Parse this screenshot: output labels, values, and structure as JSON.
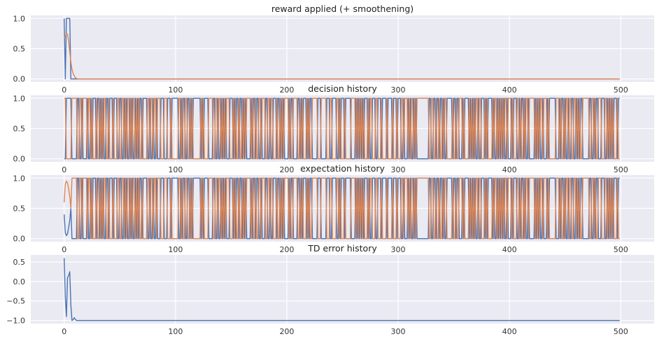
{
  "colors": {
    "background": "#ffffff",
    "axes_face": "#eaeaf2",
    "grid": "#ffffff",
    "series_blue": "#4c72b0",
    "series_orange": "#dd8452",
    "text": "#262626"
  },
  "chart_data": [
    {
      "type": "line",
      "title": "reward applied (+ smoothening)",
      "xlabel": "",
      "ylabel": "",
      "xlim": [
        -30,
        530
      ],
      "ylim": [
        -0.05,
        1.05
      ],
      "xticks": [
        0,
        100,
        200,
        300,
        400,
        500
      ],
      "yticks": [
        0.0,
        0.5,
        1.0
      ],
      "ytick_labels": [
        "0.0",
        "0.5",
        "1.0"
      ],
      "grid": true,
      "legend": "none",
      "series": [
        {
          "color": "#4c72b0",
          "pattern": "reward",
          "points": [
            [
              0,
              1.0
            ],
            [
              1,
              0.0
            ],
            [
              2,
              1.0
            ],
            [
              3,
              1.0
            ],
            [
              4,
              1.0
            ],
            [
              5,
              1.0
            ],
            [
              6,
              0.0
            ],
            [
              499,
              0.0
            ]
          ]
        },
        {
          "color": "#dd8452",
          "pattern": "reward_smooth",
          "points": [
            [
              0,
              0.68
            ],
            [
              1,
              0.7
            ],
            [
              2,
              0.75
            ],
            [
              3,
              0.74
            ],
            [
              4,
              0.62
            ],
            [
              5,
              0.45
            ],
            [
              6,
              0.28
            ],
            [
              7,
              0.16
            ],
            [
              8,
              0.09
            ],
            [
              9,
              0.05
            ],
            [
              10,
              0.02
            ],
            [
              12,
              0.0
            ],
            [
              499,
              0.0
            ]
          ]
        }
      ]
    },
    {
      "type": "line",
      "title": "decision history",
      "xlabel": "",
      "ylabel": "",
      "xlim": [
        -30,
        530
      ],
      "ylim": [
        -0.05,
        1.05
      ],
      "xticks": [
        0,
        100,
        200,
        300,
        400,
        500
      ],
      "yticks": [
        0.0,
        0.5,
        1.0
      ],
      "ytick_labels": [
        "0.0",
        "0.5",
        "1.0"
      ],
      "grid": true,
      "legend": "none",
      "series": [
        {
          "color": "#4c72b0",
          "pattern": "binary",
          "n": 500
        },
        {
          "color": "#dd8452",
          "pattern": "binary_complement",
          "n": 500
        }
      ]
    },
    {
      "type": "line",
      "title": "expectation history",
      "xlabel": "",
      "ylabel": "",
      "xlim": [
        -30,
        530
      ],
      "ylim": [
        -0.05,
        1.05
      ],
      "xticks": [
        0,
        100,
        200,
        300,
        400,
        500
      ],
      "yticks": [
        0.0,
        0.5,
        1.0
      ],
      "ytick_labels": [
        "0.0",
        "0.5",
        "1.0"
      ],
      "grid": true,
      "legend": "none",
      "series": [
        {
          "color": "#4c72b0",
          "pattern": "expectation",
          "n": 500,
          "start": [
            0.4,
            0.1,
            0.05,
            0.08,
            0.18,
            0.3,
            0.5
          ]
        },
        {
          "color": "#dd8452",
          "pattern": "expectation_complement",
          "n": 500,
          "start": [
            0.6,
            0.9,
            0.95,
            0.92,
            0.82,
            0.7,
            0.5
          ]
        }
      ]
    },
    {
      "type": "line",
      "title": "TD error history",
      "xlabel": "",
      "ylabel": "",
      "xlim": [
        -30,
        530
      ],
      "ylim": [
        -1.08,
        0.68
      ],
      "xticks": [
        0,
        100,
        200,
        300,
        400,
        500
      ],
      "yticks": [
        -1.0,
        -0.5,
        0.0,
        0.5
      ],
      "ytick_labels": [
        "−1.0",
        "−0.5",
        "0.0",
        "0.5"
      ],
      "grid": true,
      "legend": "none",
      "series": [
        {
          "color": "#4c72b0",
          "pattern": "td",
          "points": [
            [
              0,
              0.6
            ],
            [
              1,
              -0.4
            ],
            [
              2,
              -0.9
            ],
            [
              3,
              0.1
            ],
            [
              4,
              0.15
            ],
            [
              5,
              0.25
            ],
            [
              6,
              -0.6
            ],
            [
              7,
              -1.0
            ],
            [
              8,
              -0.98
            ],
            [
              9,
              -0.93
            ],
            [
              10,
              -0.97
            ],
            [
              11,
              -1.0
            ],
            [
              499,
              -1.0
            ]
          ]
        }
      ]
    }
  ]
}
